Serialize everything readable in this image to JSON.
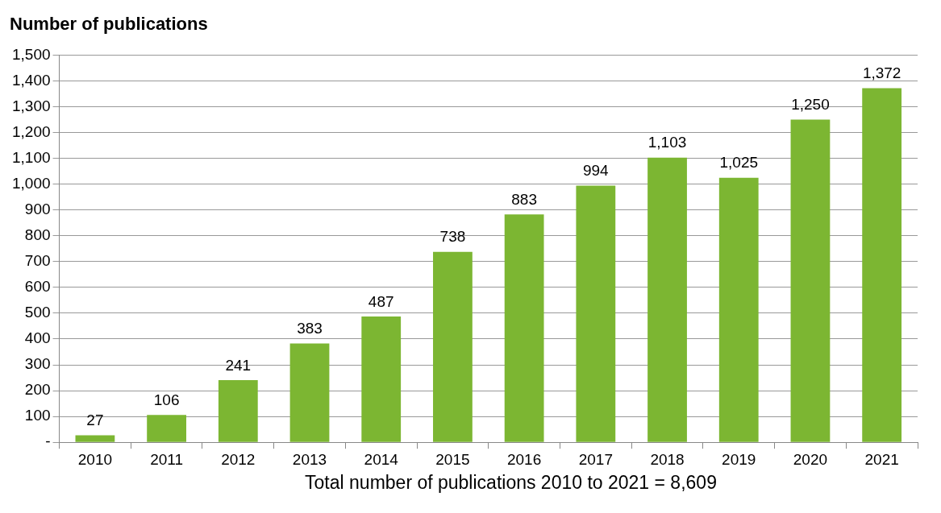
{
  "chart_data": {
    "type": "bar",
    "title": "Number of publications",
    "categories": [
      "2010",
      "2011",
      "2012",
      "2013",
      "2014",
      "2015",
      "2016",
      "2017",
      "2018",
      "2019",
      "2020",
      "2021"
    ],
    "values": [
      27,
      106,
      241,
      383,
      487,
      738,
      883,
      994,
      1103,
      1025,
      1250,
      1372
    ],
    "value_labels": [
      "27",
      "106",
      "241",
      "383",
      "487",
      "738",
      "883",
      "994",
      "1,103",
      "1,025",
      "1,250",
      "1,372"
    ],
    "color": "#7cb632",
    "ylim": [
      0,
      1500
    ],
    "yticks": [
      {
        "value": 0,
        "label": "-"
      },
      100,
      200,
      300,
      400,
      500,
      600,
      700,
      800,
      900,
      {
        "value": 1000,
        "label": "1,000"
      },
      {
        "value": 1100,
        "label": "1,100"
      },
      {
        "value": 1200,
        "label": "1,200"
      },
      {
        "value": 1300,
        "label": "1,300"
      },
      {
        "value": 1400,
        "label": "1,400"
      },
      {
        "value": 1500,
        "label": "1,500"
      }
    ],
    "grid": "y",
    "legend": false,
    "annotations": [
      "Total number of publications 2010 to 2021 = 8,609"
    ]
  }
}
